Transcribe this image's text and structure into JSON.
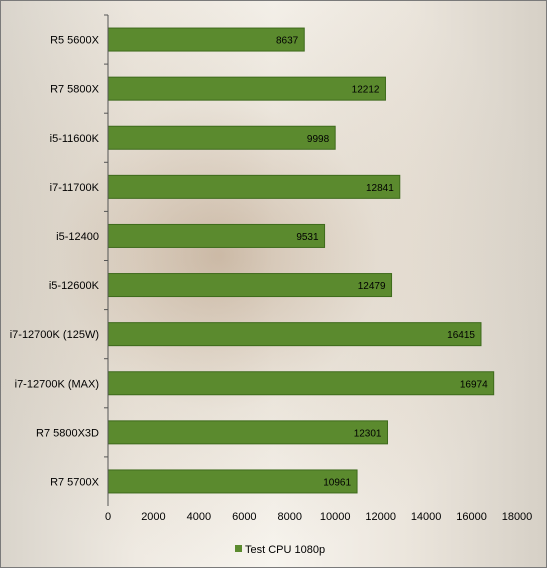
{
  "chart_data": {
    "type": "bar",
    "orientation": "horizontal",
    "categories": [
      "R5 5600X",
      "R7 5800X",
      "i5-11600K",
      "i7-11700K",
      "i5-12400",
      "i5-12600K",
      "i7-12700K (125W)",
      "i7-12700K (MAX)",
      "R7 5800X3D",
      "R7 5700X"
    ],
    "series": [
      {
        "name": "Test CPU 1080p",
        "values": [
          8637,
          12212,
          9998,
          12841,
          9531,
          12479,
          16415,
          16974,
          12301,
          10961
        ]
      }
    ],
    "data_labels": [
      "8637",
      "12212",
      "9998",
      "12841",
      "9531",
      "12479",
      "16415",
      "16974",
      "12301",
      "10961"
    ],
    "xlim": [
      0,
      18000
    ],
    "xticks": [
      0,
      2000,
      4000,
      6000,
      8000,
      10000,
      12000,
      14000,
      16000,
      18000
    ],
    "xtick_labels": [
      "0",
      "2000",
      "4000",
      "6000",
      "8000",
      "10000",
      "12000",
      "14000",
      "16000",
      "18000"
    ],
    "bar_color": "#5b8a2e",
    "bar_edge_color": "#3e6a1c",
    "grid": false,
    "legend_position": "bottom-center"
  }
}
